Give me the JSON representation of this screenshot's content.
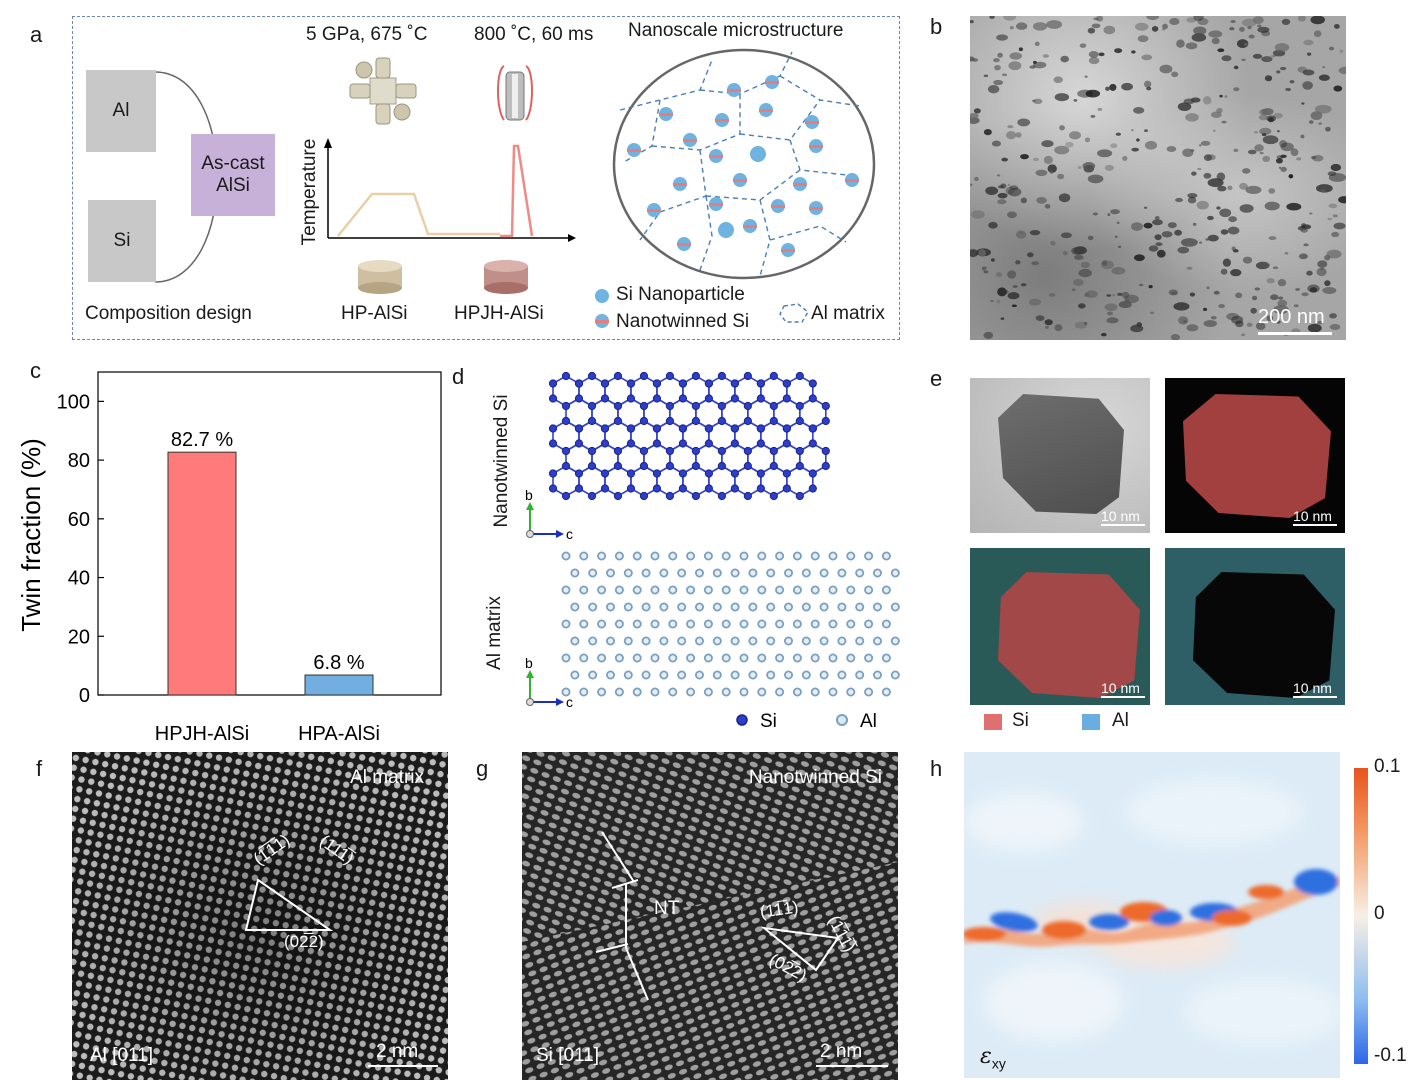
{
  "panel_labels": {
    "a": "a",
    "b": "b",
    "c": "c",
    "d": "d",
    "e": "e",
    "f": "f",
    "g": "g",
    "h": "h"
  },
  "panel_a": {
    "al_box": "Al",
    "si_box": "Si",
    "ascast_line1": "As-cast",
    "ascast_line2": "AlSi",
    "condition1": "5 GPa, 675 ˚C",
    "condition2": "800 ˚C, 60 ms",
    "temperature_label": "Temperature",
    "micro_title": "Nanoscale microstructure",
    "composition_design": "Composition design",
    "hp_label": "HP-AlSi",
    "hpjh_label": "HPJH-AlSi",
    "legend_si_np": "Si Nanoparticle",
    "legend_nt_si": "Nanotwinned Si",
    "legend_al_matrix": "Al matrix"
  },
  "panel_b": {
    "scale": "200 nm"
  },
  "chart_data": {
    "type": "bar",
    "categories": [
      "HPJH-AlSi",
      "HPA-AlSi"
    ],
    "values": [
      82.7,
      6.8
    ],
    "data_labels": [
      "82.7 %",
      "6.8 %"
    ],
    "colors": [
      "#ff7b7b",
      "#72aee0"
    ],
    "ylabel": "Twin fraction (%)",
    "xlabel": "",
    "ylim": [
      0,
      110
    ],
    "yticks": [
      0,
      20,
      40,
      60,
      80,
      100
    ]
  },
  "panel_d": {
    "top_label": "Nanotwinned Si",
    "bottom_label": "Al matrix",
    "axis_b": "b",
    "axis_c": "c",
    "legend_si": "Si",
    "legend_al": "Al"
  },
  "panel_e": {
    "scale": "10 nm",
    "legend_si": "Si",
    "legend_al": "Al",
    "si_color": "#e07070",
    "al_color": "#6aaee0"
  },
  "panel_f": {
    "title": "Al matrix",
    "zone": "Al [011]",
    "scale": "2 nm",
    "plane1": "(1̅1̅1)",
    "plane2": "(111̅)",
    "plane3": "(02̅2)"
  },
  "panel_g": {
    "title": "Nanotwinned Si",
    "zone": "Si [011]",
    "scale": "2 nm",
    "nt": "NT",
    "plane1": "(11̅1)",
    "plane2": "(1̅11̅)",
    "plane3": "(02̅2)"
  },
  "panel_h": {
    "symbol": "ε",
    "subscript": "xy",
    "cb_max": "0.1",
    "cb_mid": "0",
    "cb_min": "-0.1"
  }
}
